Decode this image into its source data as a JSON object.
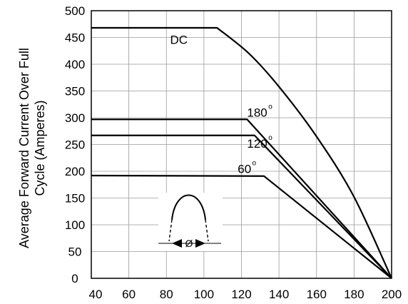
{
  "chart_data": {
    "type": "line",
    "title": "",
    "xlabel": "",
    "ylabel_lines": [
      "Average Forward Current Over Full",
      "Cycle (Amperes)"
    ],
    "xlim": [
      40,
      200
    ],
    "ylim": [
      0,
      500
    ],
    "x_tick_labels": [
      "40",
      "60",
      "80",
      "100",
      "120",
      "140",
      "160",
      "180",
      "200"
    ],
    "y_tick_labels": [
      "0",
      "50",
      "100",
      "150",
      "200",
      "250",
      "300",
      "350",
      "400",
      "450",
      "500"
    ],
    "grid": true,
    "series": [
      {
        "name": "DC",
        "points": [
          [
            40,
            468
          ],
          [
            107,
            468
          ],
          [
            124,
            420
          ],
          [
            140,
            358
          ],
          [
            160,
            265
          ],
          [
            180,
            152
          ],
          [
            200,
            0
          ]
        ]
      },
      {
        "name": "180",
        "points": [
          [
            40,
            297
          ],
          [
            123,
            297
          ],
          [
            200,
            0
          ]
        ]
      },
      {
        "name": "120",
        "points": [
          [
            40,
            267
          ],
          [
            127,
            267
          ],
          [
            200,
            0
          ]
        ]
      },
      {
        "name": "60",
        "points": [
          [
            40,
            192
          ],
          [
            132,
            191
          ],
          [
            200,
            0
          ]
        ]
      }
    ],
    "annotations": [
      {
        "text": "DC",
        "x": 82,
        "y": 446
      },
      {
        "text": "180",
        "sup": "o",
        "x": 123,
        "y": 310
      },
      {
        "text": "120",
        "sup": "o",
        "x": 123,
        "y": 252
      },
      {
        "text": "60",
        "sup": "o",
        "x": 118,
        "y": 205
      }
    ],
    "inset_symbol": "Ø"
  }
}
